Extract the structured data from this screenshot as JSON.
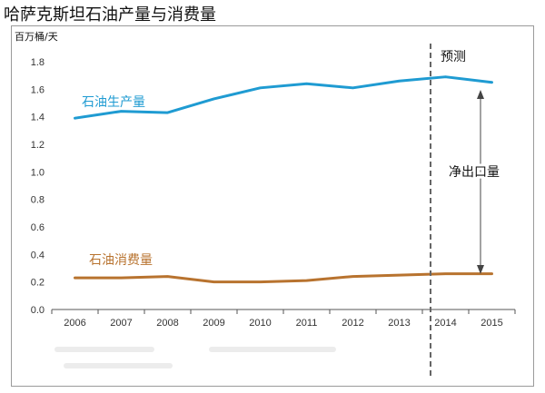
{
  "page": {
    "title": "哈萨克斯坦石油产量与消费量",
    "unit_label": "百万桶/天"
  },
  "chart_data": {
    "type": "line",
    "title": "哈萨克斯坦石油产量与消费量",
    "ylabel": "百万桶/天",
    "xlabel": "",
    "categories": [
      "2006",
      "2007",
      "2008",
      "2009",
      "2010",
      "2011",
      "2012",
      "2013",
      "2014",
      "2015"
    ],
    "y_ticks": [
      "0.0",
      "0.2",
      "0.4",
      "0.6",
      "0.8",
      "1.0",
      "1.2",
      "1.4",
      "1.6",
      "1.8"
    ],
    "ylim": [
      0,
      1.8
    ],
    "grid": false,
    "series": [
      {
        "name": "石油生产量",
        "color": "#1f9bd2",
        "values": [
          1.39,
          1.44,
          1.43,
          1.53,
          1.61,
          1.64,
          1.61,
          1.66,
          1.69,
          1.65
        ]
      },
      {
        "name": "石油消费量",
        "color": "#b8732f",
        "values": [
          0.23,
          0.23,
          0.24,
          0.2,
          0.2,
          0.21,
          0.24,
          0.25,
          0.26,
          0.26
        ]
      }
    ],
    "annotations": {
      "forecast_label": "预测",
      "net_export_label": "净出口量"
    }
  }
}
